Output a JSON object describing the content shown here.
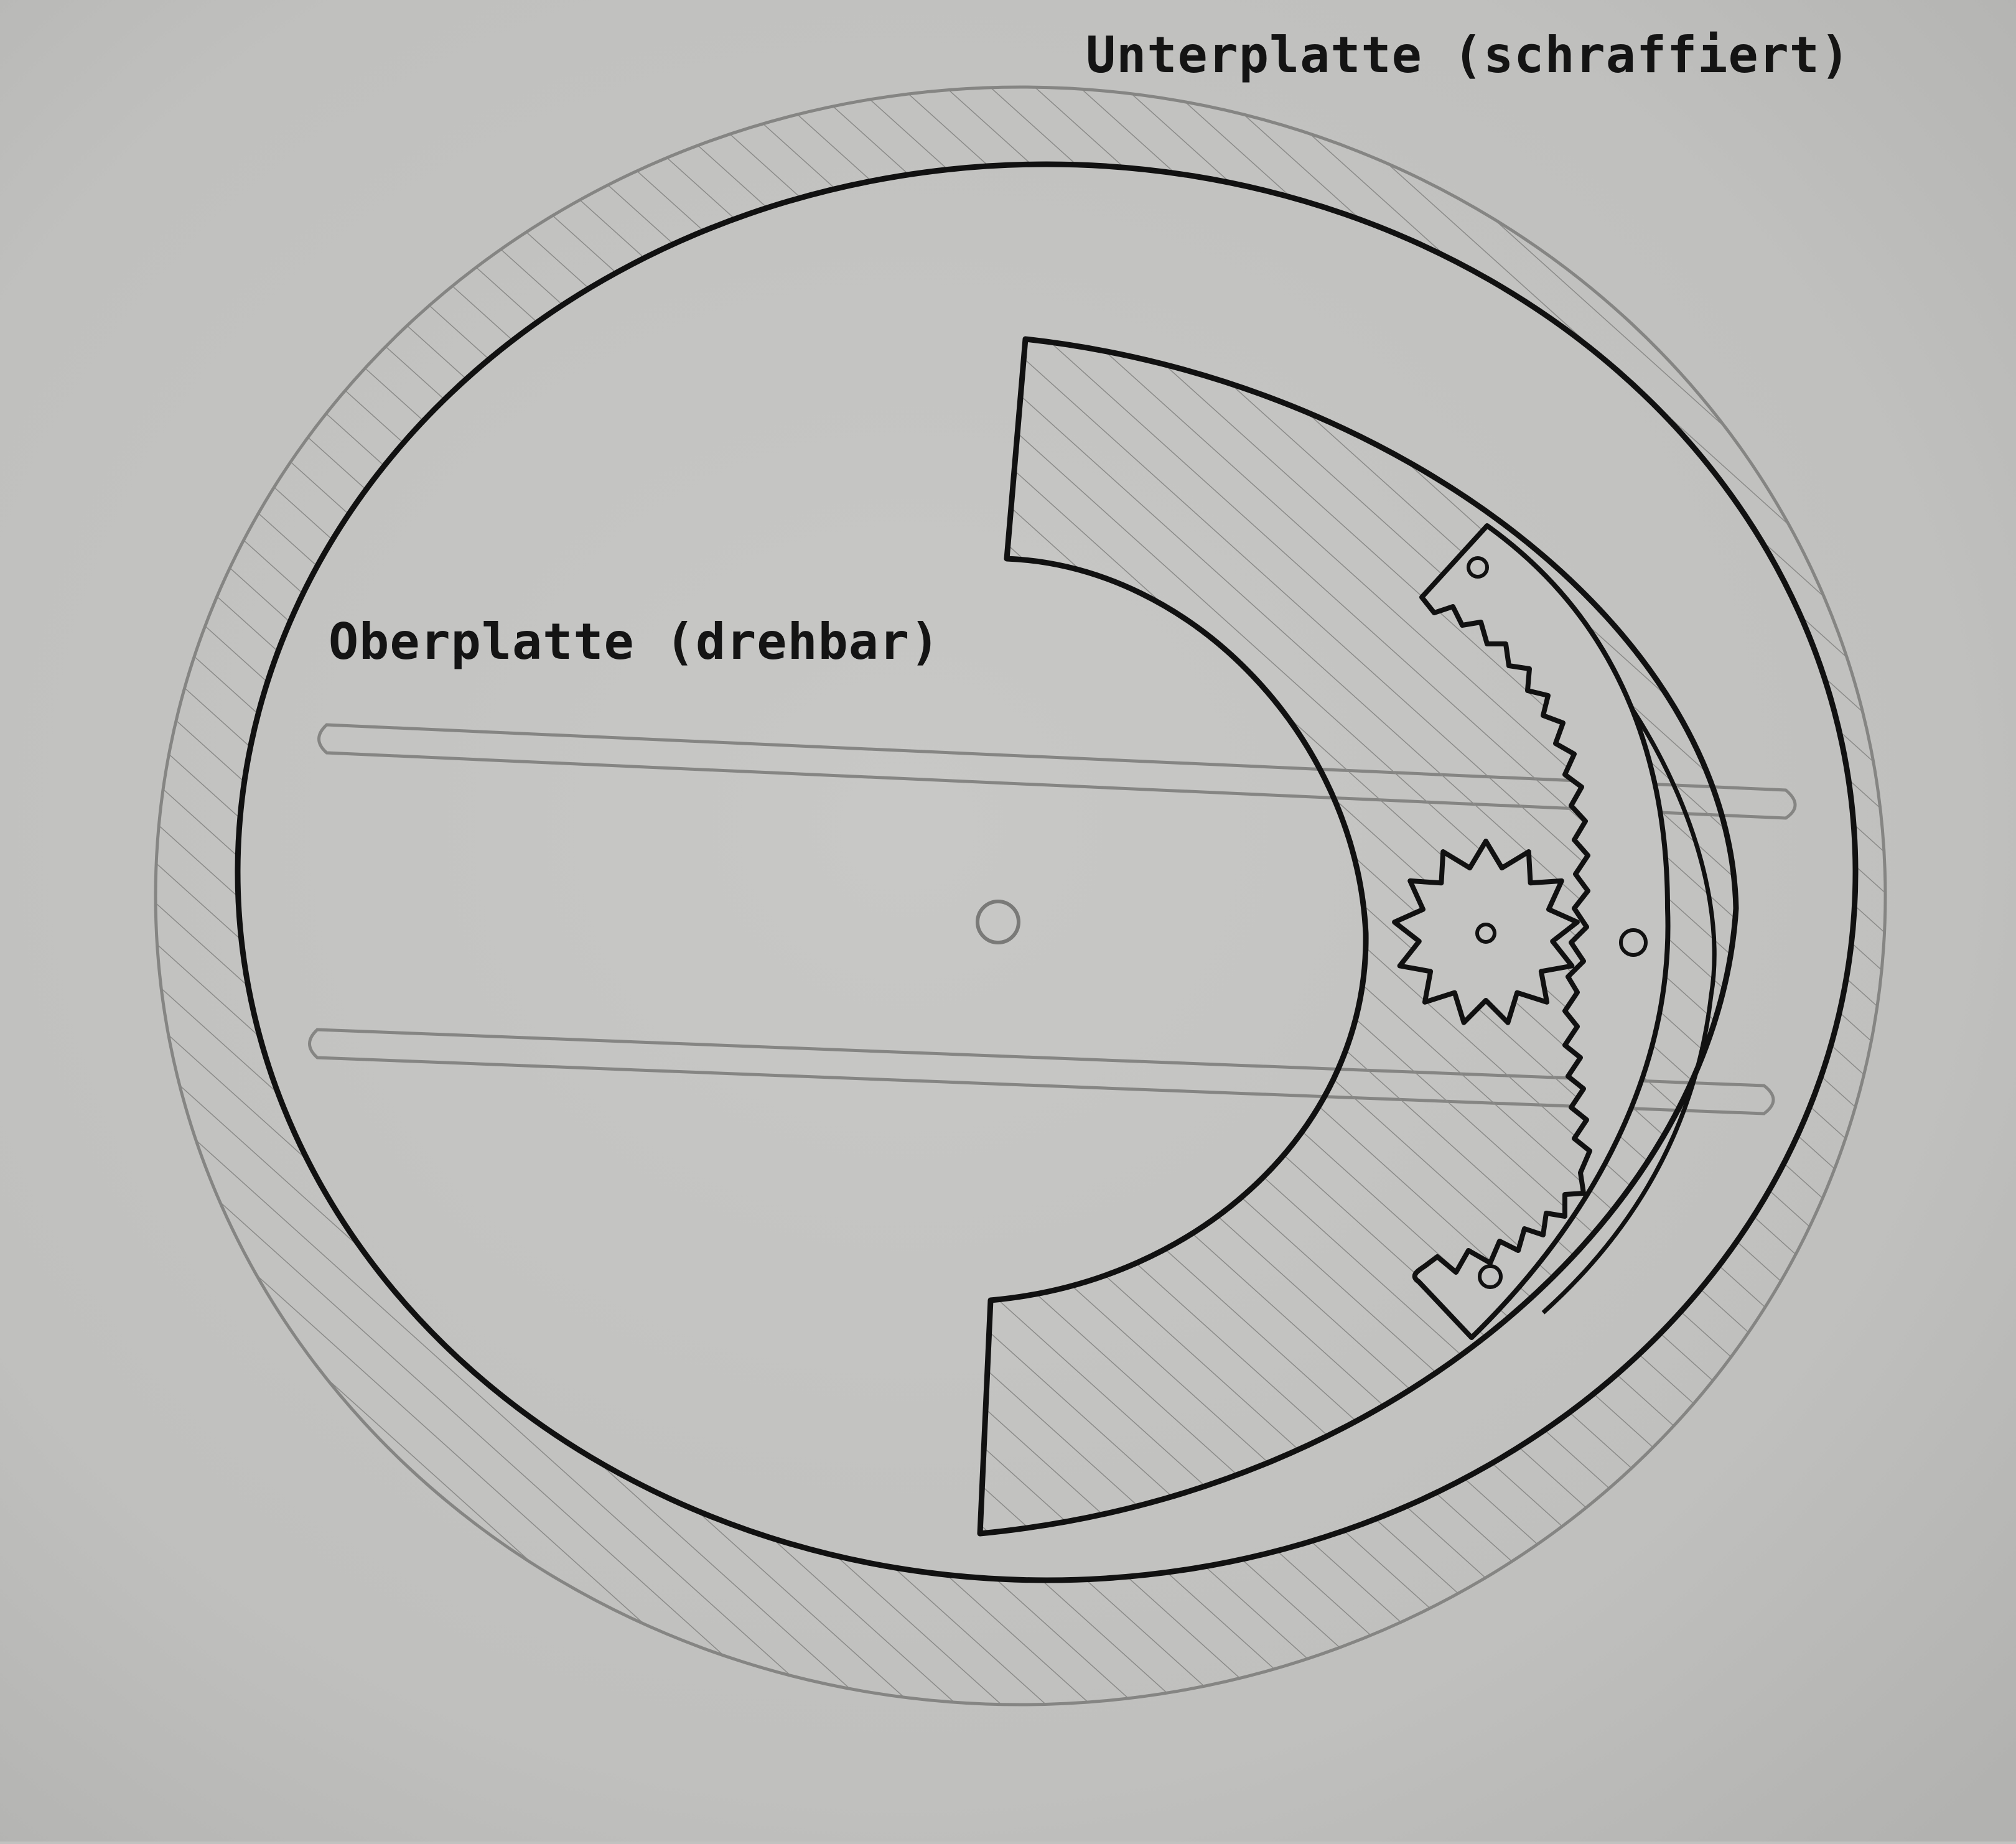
{
  "labels": {
    "bottom_plate": "Unterplatte (schraffiert)",
    "top_plate": "Oberplatte (drehbar)"
  },
  "colors": {
    "paper": "#c2c2c0",
    "ink": "#111111",
    "pencil": "#858583"
  }
}
